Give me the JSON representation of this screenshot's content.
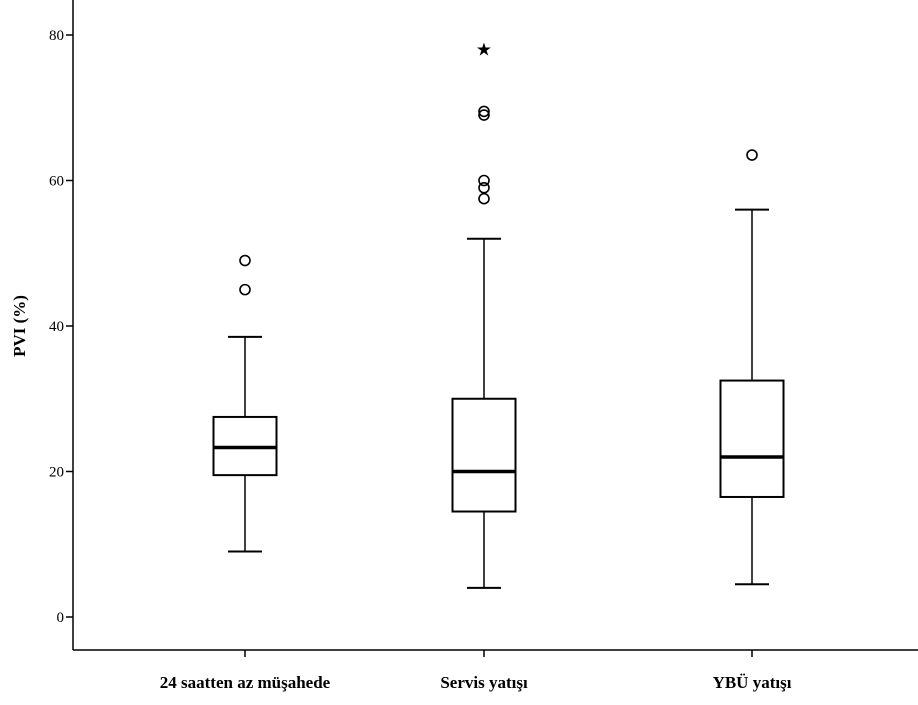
{
  "chart_data": {
    "type": "boxplot",
    "ylabel": "PVI (%)",
    "xlabel": "",
    "ylim": [
      -5,
      85
    ],
    "yticks": [
      0,
      20,
      40,
      60,
      80
    ],
    "ytick_labels": [
      "0",
      "20",
      "40",
      "60",
      "80"
    ],
    "grid": false,
    "categories": [
      "24 saatten az müşahede",
      "Servis yatışı",
      "YBÜ yatışı"
    ],
    "boxes": [
      {
        "category": "24 saatten az müşahede",
        "whisker_low": 9,
        "q1": 19.5,
        "median": 23.3,
        "q3": 27.5,
        "whisker_high": 38.5,
        "outliers": [
          45,
          49
        ],
        "extremes": []
      },
      {
        "category": "Servis yatışı",
        "whisker_low": 4,
        "q1": 14.5,
        "median": 20,
        "q3": 30,
        "whisker_high": 52,
        "outliers": [
          57.5,
          59,
          60,
          69,
          69.5
        ],
        "extremes": [
          78
        ]
      },
      {
        "category": "YBÜ yatışı",
        "whisker_low": 4.5,
        "q1": 16.5,
        "median": 22,
        "q3": 32.5,
        "whisker_high": 56,
        "outliers": [
          63.5
        ],
        "extremes": []
      }
    ]
  }
}
